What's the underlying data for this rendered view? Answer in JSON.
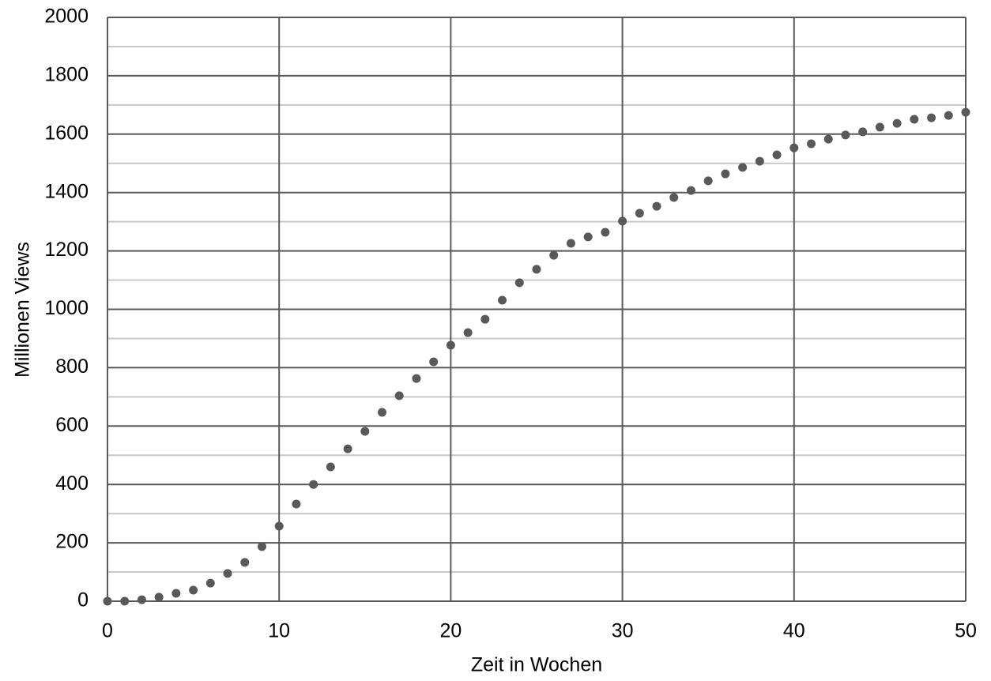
{
  "chart_data": {
    "type": "scatter",
    "x_label": "Zeit in Wochen",
    "y_label": "Millionen Views",
    "x": [
      0,
      1,
      2,
      3,
      4,
      5,
      6,
      7,
      8,
      9,
      10,
      11,
      12,
      13,
      14,
      15,
      16,
      17,
      18,
      19,
      20,
      21,
      22,
      23,
      24,
      25,
      26,
      27,
      28,
      29,
      30,
      31,
      32,
      33,
      34,
      35,
      36,
      37,
      38,
      39,
      40,
      41,
      42,
      43,
      44,
      45,
      46,
      47,
      48,
      49,
      50
    ],
    "values": [
      0,
      0,
      5,
      14,
      27,
      38,
      62,
      95,
      133,
      187,
      257,
      333,
      400,
      460,
      522,
      582,
      647,
      704,
      763,
      820,
      877,
      920,
      966,
      1031,
      1091,
      1137,
      1185,
      1226,
      1248,
      1264,
      1302,
      1329,
      1353,
      1383,
      1407,
      1440,
      1464,
      1486,
      1507,
      1529,
      1553,
      1567,
      1583,
      1597,
      1608,
      1624,
      1637,
      1651,
      1656,
      1664,
      1675
    ],
    "color": "#595959",
    "xlim": [
      0,
      50
    ],
    "xticks": [
      0,
      10,
      20,
      30,
      40,
      50
    ],
    "ylim": [
      0,
      2000
    ],
    "yticks": [
      0,
      200,
      400,
      600,
      800,
      1000,
      1200,
      1400,
      1600,
      1800,
      2000
    ],
    "y_minor_ticks": [
      100,
      300,
      500,
      700,
      900,
      1100,
      1300,
      1500,
      1700,
      1900
    ],
    "grid": true
  }
}
